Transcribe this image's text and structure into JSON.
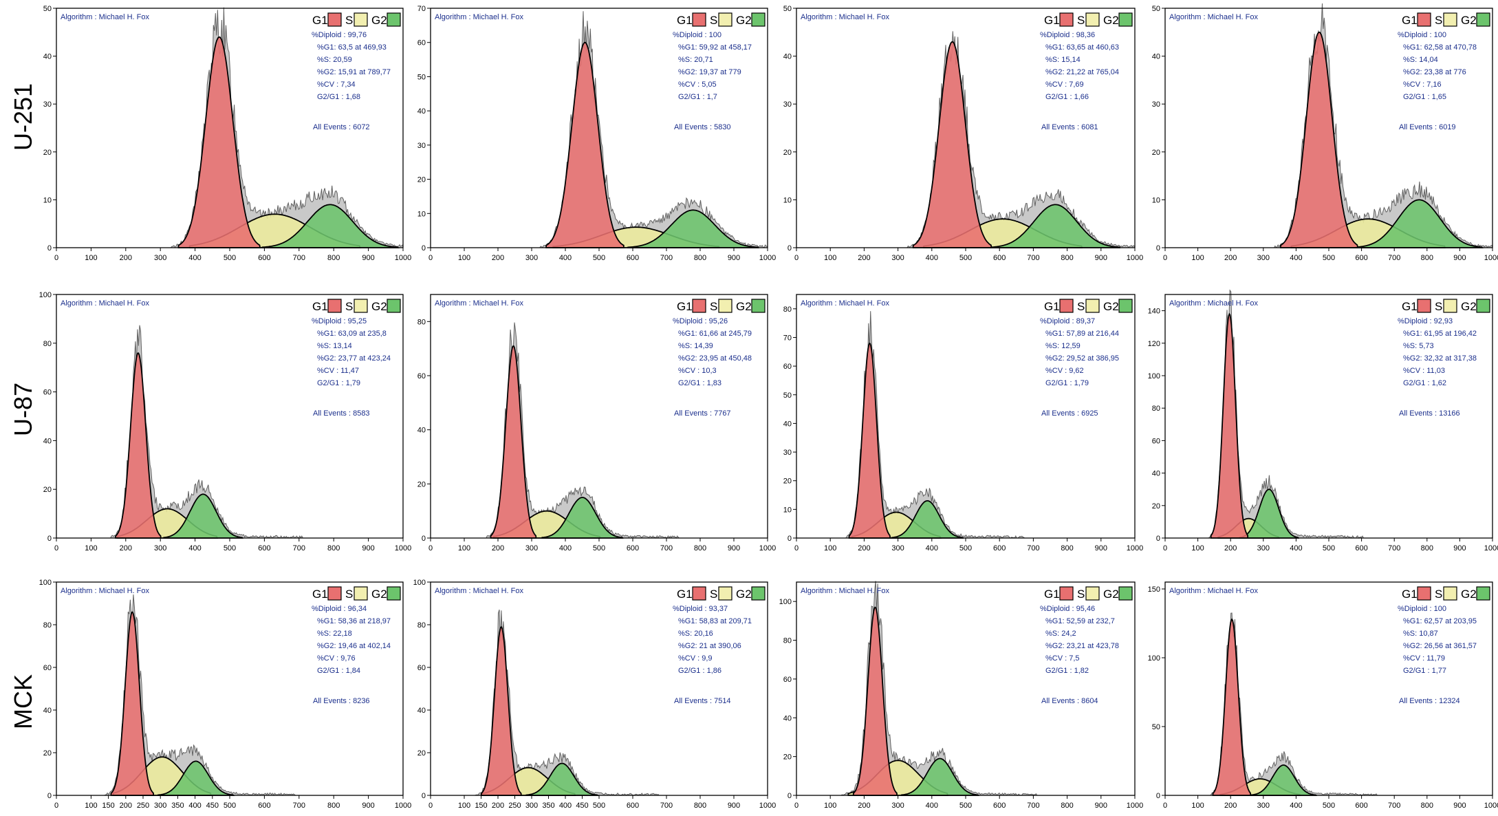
{
  "legend": {
    "entries": [
      {
        "label": "G1",
        "color": "#e87070"
      },
      {
        "label": "S",
        "color": "#f2efb0"
      },
      {
        "label": "G2",
        "color": "#6cc46c"
      }
    ]
  },
  "colors": {
    "g1_fill": "#e87070",
    "s_fill": "#ecea9c",
    "g2_fill": "#6cc46c",
    "histogram_fill": "#c9c9c9",
    "annotation_text": "#1b2f8c"
  },
  "rows": [
    {
      "label": "U-251"
    },
    {
      "label": "U-87"
    },
    {
      "label": "MCK"
    }
  ],
  "chart_data": [
    {
      "type": "area",
      "row": "U-251",
      "column": 1,
      "algorithm": "Algorithm : Michael H. Fox",
      "xlim": [
        0,
        1000
      ],
      "ylim": [
        0,
        50
      ],
      "xticks": [
        0,
        100,
        200,
        300,
        400,
        500,
        600,
        700,
        800,
        900,
        1000
      ],
      "yticks": [
        0,
        10,
        20,
        30,
        40,
        50
      ],
      "stats": [
        "%Diploid : 99,76",
        "%G1: 63,5 at 469,93",
        "%S: 20,59",
        "%G2: 15,91 at 789,77",
        "%CV : 7,34",
        "G2/G1 : 1,68"
      ],
      "events": "All Events : 6072",
      "g1": {
        "mean": 469.93,
        "peak": 44
      },
      "s": {
        "center": 630,
        "peak": 7
      },
      "g2": {
        "mean": 789.77,
        "peak": 9
      }
    },
    {
      "type": "area",
      "row": "U-251",
      "column": 2,
      "algorithm": "Algorithm : Michael H. Fox",
      "xlim": [
        0,
        1000
      ],
      "ylim": [
        0,
        70
      ],
      "xticks": [
        0,
        100,
        200,
        300,
        400,
        500,
        600,
        700,
        800,
        900,
        1000
      ],
      "yticks": [
        0,
        10,
        20,
        30,
        40,
        50,
        60,
        70
      ],
      "stats": [
        "%Diploid : 100",
        "%G1: 59,92 at 458,17",
        "%S: 20,71",
        "%G2: 19,37 at 779",
        "%CV : 5,05",
        "G2/G1 : 1,7"
      ],
      "events": "All Events : 5830",
      "g1": {
        "mean": 458.17,
        "peak": 60
      },
      "s": {
        "center": 610,
        "peak": 6
      },
      "g2": {
        "mean": 779,
        "peak": 11
      }
    },
    {
      "type": "area",
      "row": "U-251",
      "column": 3,
      "algorithm": "Algorithm : Michael H. Fox",
      "xlim": [
        0,
        1000
      ],
      "ylim": [
        0,
        50
      ],
      "xticks": [
        0,
        100,
        200,
        300,
        400,
        500,
        600,
        700,
        800,
        900,
        1000
      ],
      "yticks": [
        0,
        10,
        20,
        30,
        40,
        50
      ],
      "stats": [
        "%Diploid : 98,36",
        "%G1: 63,65 at 460,63",
        "%S: 15,14",
        "%G2: 21,22 at 765,04",
        "%CV : 7,69",
        "G2/G1 : 1,66"
      ],
      "events": "All Events : 6081",
      "g1": {
        "mean": 460.63,
        "peak": 43
      },
      "s": {
        "center": 610,
        "peak": 6
      },
      "g2": {
        "mean": 765.04,
        "peak": 9
      }
    },
    {
      "type": "area",
      "row": "U-251",
      "column": 4,
      "algorithm": "Algorithm : Michael H. Fox",
      "xlim": [
        0,
        1000
      ],
      "ylim": [
        0,
        50
      ],
      "xticks": [
        0,
        100,
        200,
        300,
        400,
        500,
        600,
        700,
        800,
        900,
        1000
      ],
      "yticks": [
        0,
        10,
        20,
        30,
        40,
        50
      ],
      "stats": [
        "%Diploid : 100",
        "%G1: 62,58 at 470,78",
        "%S: 14,04",
        "%G2: 23,38 at 776",
        "%CV : 7,16",
        "G2/G1 : 1,65"
      ],
      "events": "All Events : 6019",
      "g1": {
        "mean": 470.78,
        "peak": 45
      },
      "s": {
        "center": 620,
        "peak": 6
      },
      "g2": {
        "mean": 776,
        "peak": 10
      }
    },
    {
      "type": "area",
      "row": "U-87",
      "column": 1,
      "algorithm": "Algorithm : Michael H. Fox",
      "xlim": [
        0,
        1000
      ],
      "ylim": [
        0,
        100
      ],
      "xticks": [
        0,
        100,
        200,
        300,
        400,
        500,
        600,
        700,
        800,
        900,
        1000
      ],
      "yticks": [
        0,
        20,
        40,
        60,
        80,
        100
      ],
      "stats": [
        "%Diploid : 95,25",
        "%G1: 63,09 at 235,8",
        "%S: 13,14",
        "%G2: 23,77 at 423,24",
        "%CV : 11,47",
        "G2/G1 : 1,79"
      ],
      "events": "All Events : 8583",
      "g1": {
        "mean": 235.8,
        "peak": 76
      },
      "s": {
        "center": 320,
        "peak": 12
      },
      "g2": {
        "mean": 423.24,
        "peak": 18
      }
    },
    {
      "type": "area",
      "row": "U-87",
      "column": 2,
      "algorithm": "Algorithm : Michael H. Fox",
      "xlim": [
        0,
        1000
      ],
      "ylim": [
        0,
        90
      ],
      "xticks": [
        0,
        100,
        200,
        300,
        400,
        500,
        600,
        700,
        800,
        900,
        1000
      ],
      "yticks": [
        0,
        20,
        40,
        60,
        80
      ],
      "stats": [
        "%Diploid : 95,26",
        "%G1: 61,66 at 245,79",
        "%S: 14,39",
        "%G2: 23,95 at 450,48",
        "%CV : 10,3",
        "G2/G1 : 1,83"
      ],
      "events": "All Events : 7767",
      "g1": {
        "mean": 245.79,
        "peak": 71
      },
      "s": {
        "center": 345,
        "peak": 10
      },
      "g2": {
        "mean": 450.48,
        "peak": 15
      }
    },
    {
      "type": "area",
      "row": "U-87",
      "column": 3,
      "algorithm": "Algorithm : Michael H. Fox",
      "xlim": [
        0,
        1000
      ],
      "ylim": [
        0,
        85
      ],
      "xticks": [
        0,
        100,
        200,
        300,
        400,
        500,
        600,
        700,
        800,
        900,
        1000
      ],
      "yticks": [
        0,
        10,
        20,
        30,
        40,
        50,
        60,
        70,
        80
      ],
      "stats": [
        "%Diploid : 89,37",
        "%G1: 57,89 at 216,44",
        "%S: 12,59",
        "%G2: 29,52 at 386,95",
        "%CV : 9,62",
        "G2/G1 : 1,79"
      ],
      "events": "All Events : 6925",
      "g1": {
        "mean": 216.44,
        "peak": 68
      },
      "s": {
        "center": 295,
        "peak": 9
      },
      "g2": {
        "mean": 386.95,
        "peak": 13
      }
    },
    {
      "type": "area",
      "row": "U-87",
      "column": 4,
      "algorithm": "Algorithm : Michael H. Fox",
      "xlim": [
        0,
        1000
      ],
      "ylim": [
        0,
        150
      ],
      "xticks": [
        0,
        100,
        200,
        300,
        400,
        500,
        600,
        700,
        800,
        900,
        1000
      ],
      "yticks": [
        0,
        20,
        40,
        60,
        80,
        100,
        120,
        140
      ],
      "stats": [
        "%Diploid : 92,93",
        "%G1: 61,95 at 196,42",
        "%S: 5,73",
        "%G2: 32,32 at 317,38",
        "%CV : 11,03",
        "G2/G1 : 1,62"
      ],
      "events": "All Events : 13166",
      "g1": {
        "mean": 196.42,
        "peak": 138
      },
      "s": {
        "center": 255,
        "peak": 12
      },
      "g2": {
        "mean": 317.38,
        "peak": 30
      }
    },
    {
      "type": "area",
      "row": "MCK",
      "column": 1,
      "algorithm": "Algorithm : Michael H. Fox",
      "xlim": [
        0,
        1000
      ],
      "ylim": [
        0,
        100
      ],
      "xticks": [
        0,
        100,
        150,
        200,
        250,
        300,
        350,
        400,
        450,
        500,
        600,
        700,
        800,
        900,
        1000
      ],
      "yticks": [
        0,
        20,
        40,
        60,
        80,
        100
      ],
      "stats": [
        "%Diploid : 96,34",
        "%G1: 58,36 at 218,97",
        "%S: 22,18",
        "%G2: 19,46 at 402,14",
        "%CV : 9,76",
        "G2/G1 : 1,84"
      ],
      "events": "All Events : 8236",
      "g1": {
        "mean": 218.97,
        "peak": 86
      },
      "s": {
        "center": 305,
        "peak": 18
      },
      "g2": {
        "mean": 402.14,
        "peak": 16
      }
    },
    {
      "type": "area",
      "row": "MCK",
      "column": 2,
      "algorithm": "Algorithm : Michael H. Fox",
      "xlim": [
        0,
        1000
      ],
      "ylim": [
        0,
        100
      ],
      "xticks": [
        0,
        100,
        150,
        200,
        250,
        300,
        350,
        400,
        450,
        500,
        600,
        700,
        800,
        900,
        1000
      ],
      "yticks": [
        0,
        20,
        40,
        60,
        80,
        100
      ],
      "stats": [
        "%Diploid : 93,37",
        "%G1: 58,83 at 209,71",
        "%S: 20,16",
        "%G2: 21 at 390,06",
        "%CV : 9,9",
        "G2/G1 : 1,86"
      ],
      "events": "All Events : 7514",
      "g1": {
        "mean": 209.71,
        "peak": 79
      },
      "s": {
        "center": 290,
        "peak": 13
      },
      "g2": {
        "mean": 390.06,
        "peak": 15
      }
    },
    {
      "type": "area",
      "row": "MCK",
      "column": 3,
      "algorithm": "Algorithm : Michael H. Fox",
      "xlim": [
        0,
        1000
      ],
      "ylim": [
        0,
        110
      ],
      "xticks": [
        0,
        100,
        200,
        300,
        400,
        500,
        600,
        700,
        800,
        900,
        1000
      ],
      "yticks": [
        0,
        20,
        40,
        60,
        80,
        100
      ],
      "stats": [
        "%Diploid : 95,46",
        "%G1: 52,59 at 232,7",
        "%S: 24,2",
        "%G2: 23,21 at 423,78",
        "%CV : 7,5",
        "G2/G1 : 1,82"
      ],
      "events": "All Events : 8604",
      "g1": {
        "mean": 232.7,
        "peak": 97
      },
      "s": {
        "center": 300,
        "peak": 18
      },
      "g2": {
        "mean": 423.78,
        "peak": 19
      }
    },
    {
      "type": "area",
      "row": "MCK",
      "column": 4,
      "algorithm": "Algorithm : Michael H. Fox",
      "xlim": [
        0,
        1000
      ],
      "ylim": [
        0,
        155
      ],
      "xticks": [
        0,
        100,
        200,
        300,
        400,
        500,
        600,
        700,
        800,
        900,
        1000
      ],
      "yticks": [
        0,
        50,
        100,
        150
      ],
      "stats": [
        "%Diploid : 100",
        "%G1: 62,57 at 203,95",
        "%S: 10,87",
        "%G2: 26,56 at 361,57",
        "%CV : 11,79",
        "G2/G1 : 1,77"
      ],
      "events": "All Events : 12324",
      "g1": {
        "mean": 203.95,
        "peak": 128
      },
      "s": {
        "center": 290,
        "peak": 12
      },
      "g2": {
        "mean": 361.57,
        "peak": 22
      }
    }
  ]
}
